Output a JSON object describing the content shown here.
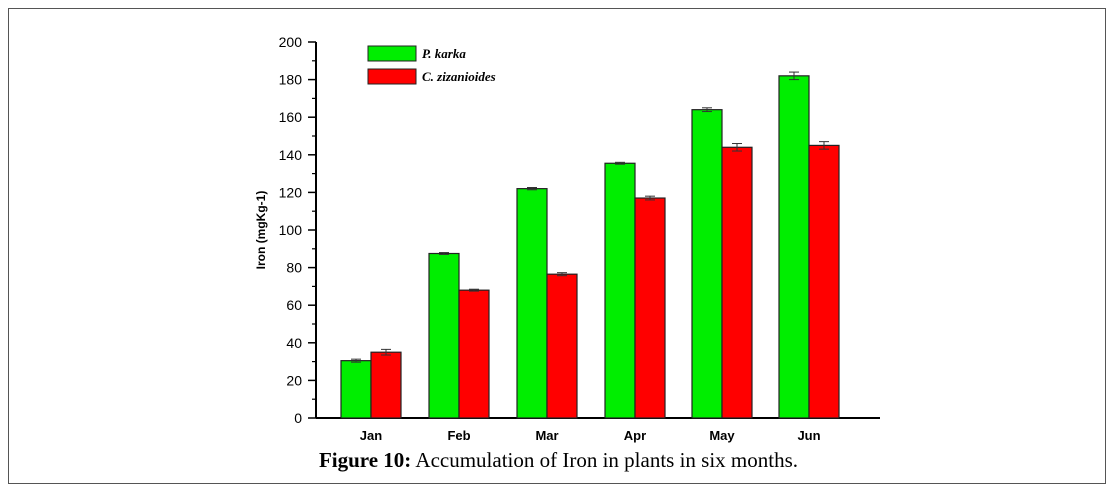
{
  "caption": {
    "label": "Figure 10:",
    "text": " Accumulation of Iron in plants in six months."
  },
  "chart_data": {
    "type": "bar",
    "title": "",
    "xlabel": "",
    "ylabel": "Iron (mgKg-1)",
    "ylim": [
      0,
      200
    ],
    "yticks": [
      0,
      20,
      40,
      60,
      80,
      100,
      120,
      140,
      160,
      180,
      200
    ],
    "categories": [
      "Jan",
      "Feb",
      "Mar",
      "Apr",
      "May",
      "Jun"
    ],
    "legend_position": "top-left",
    "series": [
      {
        "name": "P. karka",
        "color": "#00ee00",
        "values": [
          30.5,
          87.5,
          122,
          135.5,
          164,
          182
        ],
        "errors": [
          0.8,
          0.5,
          0.6,
          0.5,
          1,
          2
        ]
      },
      {
        "name": "C. zizanioides",
        "color": "#ff0000",
        "values": [
          35,
          68,
          76.5,
          117,
          144,
          145
        ],
        "errors": [
          1.5,
          0.5,
          0.8,
          1,
          2,
          2
        ]
      }
    ]
  }
}
